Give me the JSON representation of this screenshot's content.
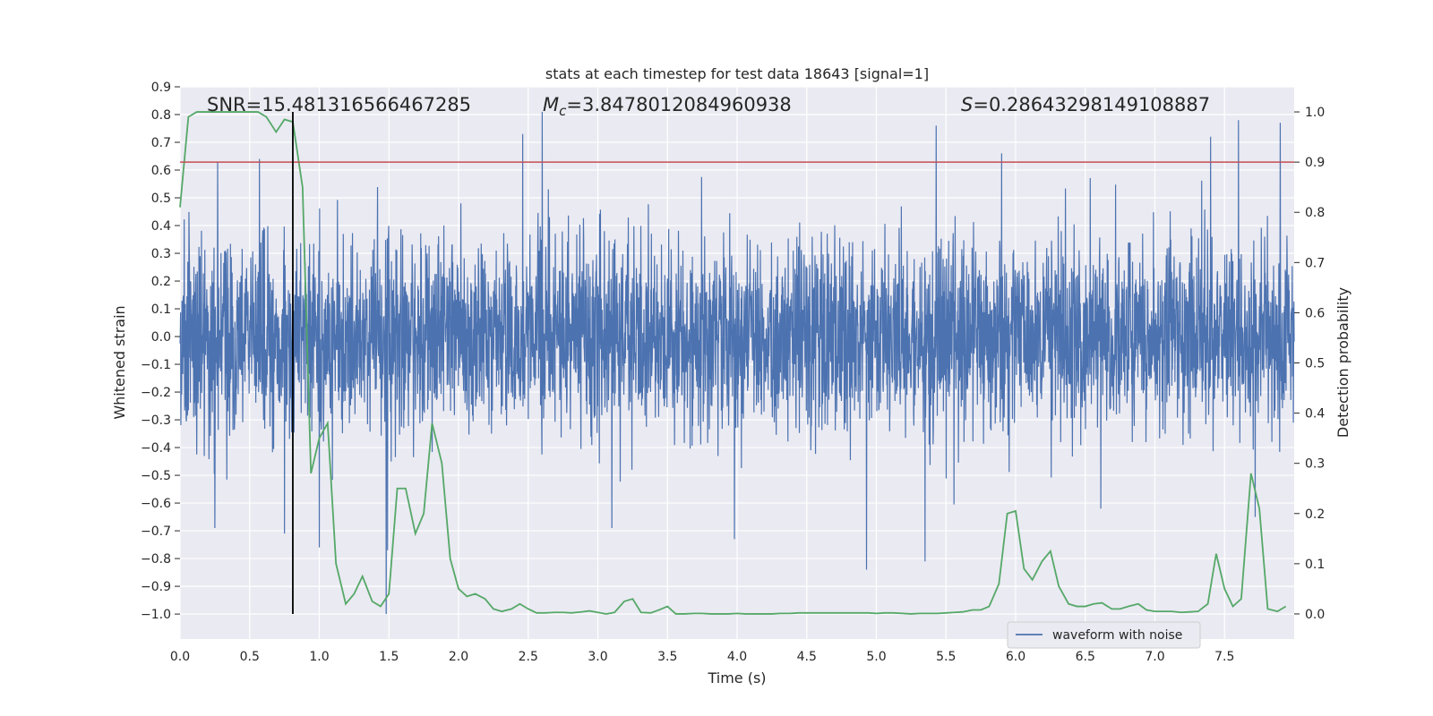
{
  "chart_data": {
    "type": "line",
    "title": "stats at each timestep for test data 18643 [signal=1]",
    "xlabel": "Time (s)",
    "ylabel_left": "Whitened strain",
    "ylabel_right": "Detection probability",
    "xlim": [
      0.0,
      8.0
    ],
    "ylim_left": [
      -1.09,
      0.9
    ],
    "ylim_right": [
      -0.05,
      1.05
    ],
    "x_ticks": [
      "0.0",
      "0.5",
      "1.0",
      "1.5",
      "2.0",
      "2.5",
      "3.0",
      "3.5",
      "4.0",
      "4.5",
      "5.0",
      "5.5",
      "6.0",
      "6.5",
      "7.0",
      "7.5"
    ],
    "y_ticks_left": [
      "0.9",
      "0.8",
      "0.7",
      "0.6",
      "0.5",
      "0.4",
      "0.3",
      "0.2",
      "0.1",
      "0.0",
      "−0.1",
      "−0.2",
      "−0.3",
      "−0.4",
      "−0.5",
      "−0.6",
      "−0.7",
      "−0.8",
      "−0.9",
      "−1.0"
    ],
    "y_ticks_right": [
      "1.0",
      "0.9",
      "0.8",
      "0.7",
      "0.6",
      "0.5",
      "0.4",
      "0.3",
      "0.2",
      "0.1",
      "0.0"
    ],
    "annotations": {
      "snr": "SNR=15.481316566467285",
      "mc_symbol": "M",
      "mc_sub": "c",
      "mc_value": "=3.8478012084960938",
      "s_symbol": "S",
      "s_value": "=0.28643298149108887"
    },
    "threshold": 0.9,
    "event_time": 0.81,
    "legend": [
      "waveform with noise"
    ],
    "series": [
      {
        "name": "waveform with noise",
        "axis": "left",
        "color": "#4c72b0",
        "kind": "noise",
        "typical_range": [
          -0.5,
          0.5
        ],
        "notable_spikes": [
          {
            "x": 0.25,
            "y": -0.69
          },
          {
            "x": 0.27,
            "y": 0.63
          },
          {
            "x": 0.57,
            "y": 0.64
          },
          {
            "x": 0.75,
            "y": -0.71
          },
          {
            "x": 1.0,
            "y": -0.76
          },
          {
            "x": 1.48,
            "y": -1.0
          },
          {
            "x": 1.49,
            "y": -0.77
          },
          {
            "x": 2.46,
            "y": 0.73
          },
          {
            "x": 2.6,
            "y": 0.81
          },
          {
            "x": 3.1,
            "y": -0.69
          },
          {
            "x": 3.98,
            "y": -0.73
          },
          {
            "x": 4.93,
            "y": -0.84
          },
          {
            "x": 5.35,
            "y": -0.81
          },
          {
            "x": 5.43,
            "y": 0.76
          },
          {
            "x": 5.9,
            "y": 0.66
          },
          {
            "x": 7.4,
            "y": 0.72
          },
          {
            "x": 7.6,
            "y": 0.78
          },
          {
            "x": 7.72,
            "y": -0.65
          },
          {
            "x": 7.9,
            "y": 0.77
          }
        ]
      },
      {
        "name": "detection probability",
        "axis": "right",
        "color": "#55a868",
        "x": [
          0.0,
          0.06,
          0.12,
          0.19,
          0.25,
          0.31,
          0.38,
          0.44,
          0.5,
          0.56,
          0.62,
          0.69,
          0.75,
          0.81,
          0.88,
          0.94,
          1.0,
          1.06,
          1.12,
          1.19,
          1.25,
          1.31,
          1.38,
          1.44,
          1.5,
          1.56,
          1.62,
          1.69,
          1.75,
          1.81,
          1.88,
          1.94,
          2.0,
          2.06,
          2.12,
          2.19,
          2.25,
          2.31,
          2.38,
          2.44,
          2.5,
          2.56,
          2.62,
          2.69,
          2.75,
          2.81,
          2.88,
          2.94,
          3.0,
          3.06,
          3.12,
          3.19,
          3.25,
          3.31,
          3.38,
          3.44,
          3.5,
          3.56,
          3.62,
          3.69,
          3.75,
          3.81,
          3.88,
          3.94,
          4.0,
          4.06,
          4.12,
          4.19,
          4.25,
          4.31,
          4.38,
          4.44,
          4.5,
          4.56,
          4.62,
          4.69,
          4.75,
          4.81,
          4.88,
          4.94,
          5.0,
          5.06,
          5.12,
          5.19,
          5.25,
          5.31,
          5.38,
          5.44,
          5.5,
          5.56,
          5.62,
          5.69,
          5.75,
          5.81,
          5.88,
          5.94,
          6.0,
          6.06,
          6.12,
          6.19,
          6.25,
          6.31,
          6.38,
          6.44,
          6.5,
          6.56,
          6.62,
          6.69,
          6.75,
          6.81,
          6.88,
          6.94,
          7.0,
          7.06,
          7.12,
          7.19,
          7.25,
          7.31,
          7.38,
          7.44,
          7.5,
          7.56,
          7.62,
          7.69,
          7.75,
          7.81,
          7.88,
          7.94
        ],
        "y": [
          0.81,
          0.99,
          1.0,
          1.0,
          1.0,
          1.0,
          1.0,
          1.0,
          1.0,
          1.0,
          0.99,
          0.96,
          0.985,
          0.98,
          0.85,
          0.28,
          0.35,
          0.38,
          0.1,
          0.02,
          0.04,
          0.075,
          0.025,
          0.015,
          0.04,
          0.25,
          0.25,
          0.16,
          0.2,
          0.38,
          0.3,
          0.11,
          0.05,
          0.035,
          0.04,
          0.03,
          0.01,
          0.005,
          0.01,
          0.02,
          0.01,
          0.002,
          0.002,
          0.003,
          0.003,
          0.002,
          0.004,
          0.006,
          0.003,
          0.0,
          0.003,
          0.025,
          0.03,
          0.003,
          0.002,
          0.008,
          0.015,
          0.0,
          0.0,
          0.001,
          0.001,
          0.0,
          0.0,
          0.0,
          0.001,
          0.0,
          0.0,
          0.0,
          0.0,
          0.001,
          0.001,
          0.002,
          0.002,
          0.002,
          0.002,
          0.002,
          0.002,
          0.002,
          0.002,
          0.002,
          0.001,
          0.002,
          0.002,
          0.001,
          0.0,
          0.001,
          0.001,
          0.001,
          0.002,
          0.003,
          0.004,
          0.008,
          0.008,
          0.015,
          0.06,
          0.2,
          0.205,
          0.09,
          0.068,
          0.105,
          0.125,
          0.055,
          0.02,
          0.015,
          0.015,
          0.02,
          0.022,
          0.01,
          0.01,
          0.015,
          0.02,
          0.008,
          0.005,
          0.005,
          0.005,
          0.003,
          0.004,
          0.005,
          0.02,
          0.12,
          0.05,
          0.015,
          0.03,
          0.28,
          0.21,
          0.01,
          0.005,
          0.015
        ]
      }
    ]
  }
}
